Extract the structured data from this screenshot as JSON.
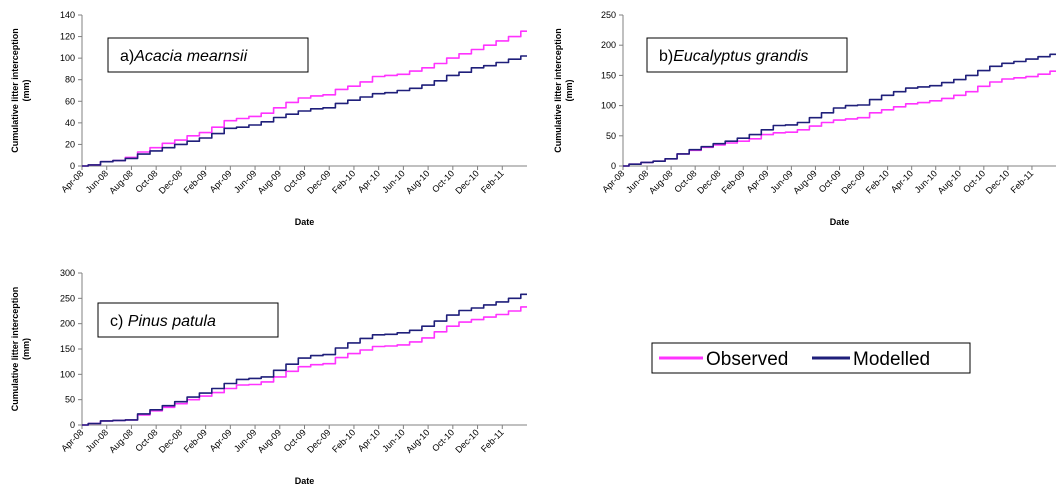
{
  "colors": {
    "observed": "#ff33ff",
    "modelled": "#1f1f7a",
    "axis": "#808080"
  },
  "legend": {
    "items": [
      "Observed",
      "Modelled"
    ]
  },
  "chart_data": [
    {
      "type": "line",
      "panel_label": "a)",
      "panel_species": "Acacia mearnsii",
      "xlabel": "Date",
      "ylabel": "Cumulative litter interception\n(mm)",
      "x_ticks": [
        "Apr-08",
        "Jun-08",
        "Aug-08",
        "Oct-08",
        "Dec-08",
        "Feb-09",
        "Apr-09",
        "Jun-09",
        "Aug-09",
        "Oct-09",
        "Dec-09",
        "Feb-10",
        "Apr-10",
        "Jun-10",
        "Aug-10",
        "Oct-10",
        "Dec-10",
        "Feb-11"
      ],
      "y_ticks": [
        0,
        20,
        40,
        60,
        80,
        100,
        120,
        140
      ],
      "ylim": [
        0,
        140
      ],
      "x": [
        "Apr-08",
        "May-08",
        "Jun-08",
        "Jul-08",
        "Aug-08",
        "Sep-08",
        "Oct-08",
        "Nov-08",
        "Dec-08",
        "Jan-09",
        "Feb-09",
        "Mar-09",
        "Apr-09",
        "May-09",
        "Jun-09",
        "Jul-09",
        "Aug-09",
        "Sep-09",
        "Oct-09",
        "Nov-09",
        "Dec-09",
        "Jan-10",
        "Feb-10",
        "Mar-10",
        "Apr-10",
        "May-10",
        "Jun-10",
        "Jul-10",
        "Aug-10",
        "Sep-10",
        "Oct-10",
        "Nov-10",
        "Dec-10",
        "Jan-11",
        "Feb-11",
        "Mar-11",
        "Apr-11"
      ],
      "series": [
        {
          "name": "Observed",
          "values": [
            0,
            1,
            4,
            5,
            8,
            13,
            17,
            21,
            24,
            28,
            31,
            36,
            42,
            44,
            46,
            49,
            54,
            59,
            63,
            65,
            66,
            71,
            74,
            78,
            83,
            84,
            85,
            88,
            91,
            95,
            100,
            104,
            108,
            112,
            116,
            120,
            125
          ]
        },
        {
          "name": "Modelled",
          "values": [
            0,
            1,
            4,
            5,
            7,
            11,
            14,
            17,
            20,
            23,
            26,
            30,
            35,
            36,
            38,
            41,
            45,
            48,
            51,
            53,
            54,
            58,
            61,
            64,
            67,
            68,
            70,
            72,
            75,
            79,
            84,
            87,
            91,
            93,
            96,
            99,
            102
          ]
        }
      ]
    },
    {
      "type": "line",
      "panel_label": "b)",
      "panel_species": "Eucalyptus grandis",
      "xlabel": "Date",
      "ylabel": "Cumulative litter interception\n(mm)",
      "x_ticks": [
        "Apr-08",
        "Jun-08",
        "Aug-08",
        "Oct-08",
        "Dec-08",
        "Feb-09",
        "Apr-09",
        "Jun-09",
        "Aug-09",
        "Oct-09",
        "Dec-09",
        "Feb-10",
        "Apr-10",
        "Jun-10",
        "Aug-10",
        "Oct-10",
        "Dec-10",
        "Feb-11"
      ],
      "y_ticks": [
        0,
        50,
        100,
        150,
        200,
        250
      ],
      "ylim": [
        0,
        250
      ],
      "x": [
        "Apr-08",
        "May-08",
        "Jun-08",
        "Jul-08",
        "Aug-08",
        "Sep-08",
        "Oct-08",
        "Nov-08",
        "Dec-08",
        "Jan-09",
        "Feb-09",
        "Mar-09",
        "Apr-09",
        "May-09",
        "Jun-09",
        "Jul-09",
        "Aug-09",
        "Sep-09",
        "Oct-09",
        "Nov-09",
        "Dec-09",
        "Jan-10",
        "Feb-10",
        "Mar-10",
        "Apr-10",
        "May-10",
        "Jun-10",
        "Jul-10",
        "Aug-10",
        "Sep-10",
        "Oct-10",
        "Nov-10",
        "Dec-10",
        "Jan-11",
        "Feb-11",
        "Mar-11",
        "Apr-11"
      ],
      "series": [
        {
          "name": "Observed",
          "values": [
            0,
            3,
            6,
            8,
            12,
            20,
            26,
            31,
            35,
            38,
            41,
            45,
            52,
            55,
            56,
            60,
            66,
            72,
            76,
            78,
            80,
            88,
            93,
            98,
            103,
            105,
            108,
            112,
            117,
            123,
            132,
            139,
            144,
            146,
            148,
            152,
            157
          ]
        },
        {
          "name": "Modelled",
          "values": [
            0,
            3,
            6,
            8,
            12,
            20,
            27,
            32,
            37,
            41,
            46,
            52,
            60,
            67,
            68,
            72,
            80,
            88,
            96,
            100,
            101,
            110,
            117,
            123,
            129,
            131,
            133,
            138,
            143,
            150,
            158,
            165,
            170,
            173,
            177,
            181,
            185
          ]
        }
      ]
    },
    {
      "type": "line",
      "panel_label": "c) ",
      "panel_species": "Pinus patula",
      "xlabel": "Date",
      "ylabel": "Cumulative litter interception\n(mm)",
      "x_ticks": [
        "Apr-08",
        "Jun-08",
        "Aug-08",
        "Oct-08",
        "Dec-08",
        "Feb-09",
        "Apr-09",
        "Jun-09",
        "Aug-09",
        "Oct-09",
        "Dec-09",
        "Feb-10",
        "Apr-10",
        "Jun-10",
        "Aug-10",
        "Oct-10",
        "Dec-10",
        "Feb-11"
      ],
      "y_ticks": [
        0,
        50,
        100,
        150,
        200,
        250,
        300
      ],
      "ylim": [
        0,
        300
      ],
      "x": [
        "Apr-08",
        "May-08",
        "Jun-08",
        "Jul-08",
        "Aug-08",
        "Sep-08",
        "Oct-08",
        "Nov-08",
        "Dec-08",
        "Jan-09",
        "Feb-09",
        "Mar-09",
        "Apr-09",
        "May-09",
        "Jun-09",
        "Jul-09",
        "Aug-09",
        "Sep-09",
        "Oct-09",
        "Nov-09",
        "Dec-09",
        "Jan-10",
        "Feb-10",
        "Mar-10",
        "Apr-10",
        "May-10",
        "Jun-10",
        "Jul-10",
        "Aug-10",
        "Sep-10",
        "Oct-10",
        "Nov-10",
        "Dec-10",
        "Jan-11",
        "Feb-11",
        "Mar-11",
        "Apr-11"
      ],
      "series": [
        {
          "name": "Observed",
          "values": [
            0,
            3,
            8,
            9,
            10,
            20,
            28,
            35,
            42,
            50,
            57,
            64,
            72,
            79,
            80,
            85,
            95,
            106,
            115,
            119,
            121,
            133,
            141,
            148,
            155,
            156,
            158,
            164,
            172,
            184,
            195,
            203,
            208,
            213,
            218,
            225,
            233
          ]
        },
        {
          "name": "Modelled",
          "values": [
            0,
            3,
            8,
            9,
            10,
            22,
            30,
            38,
            46,
            55,
            63,
            72,
            82,
            90,
            92,
            95,
            108,
            120,
            132,
            137,
            139,
            152,
            162,
            171,
            178,
            179,
            182,
            187,
            195,
            205,
            217,
            226,
            231,
            237,
            243,
            250,
            258
          ]
        }
      ]
    }
  ]
}
